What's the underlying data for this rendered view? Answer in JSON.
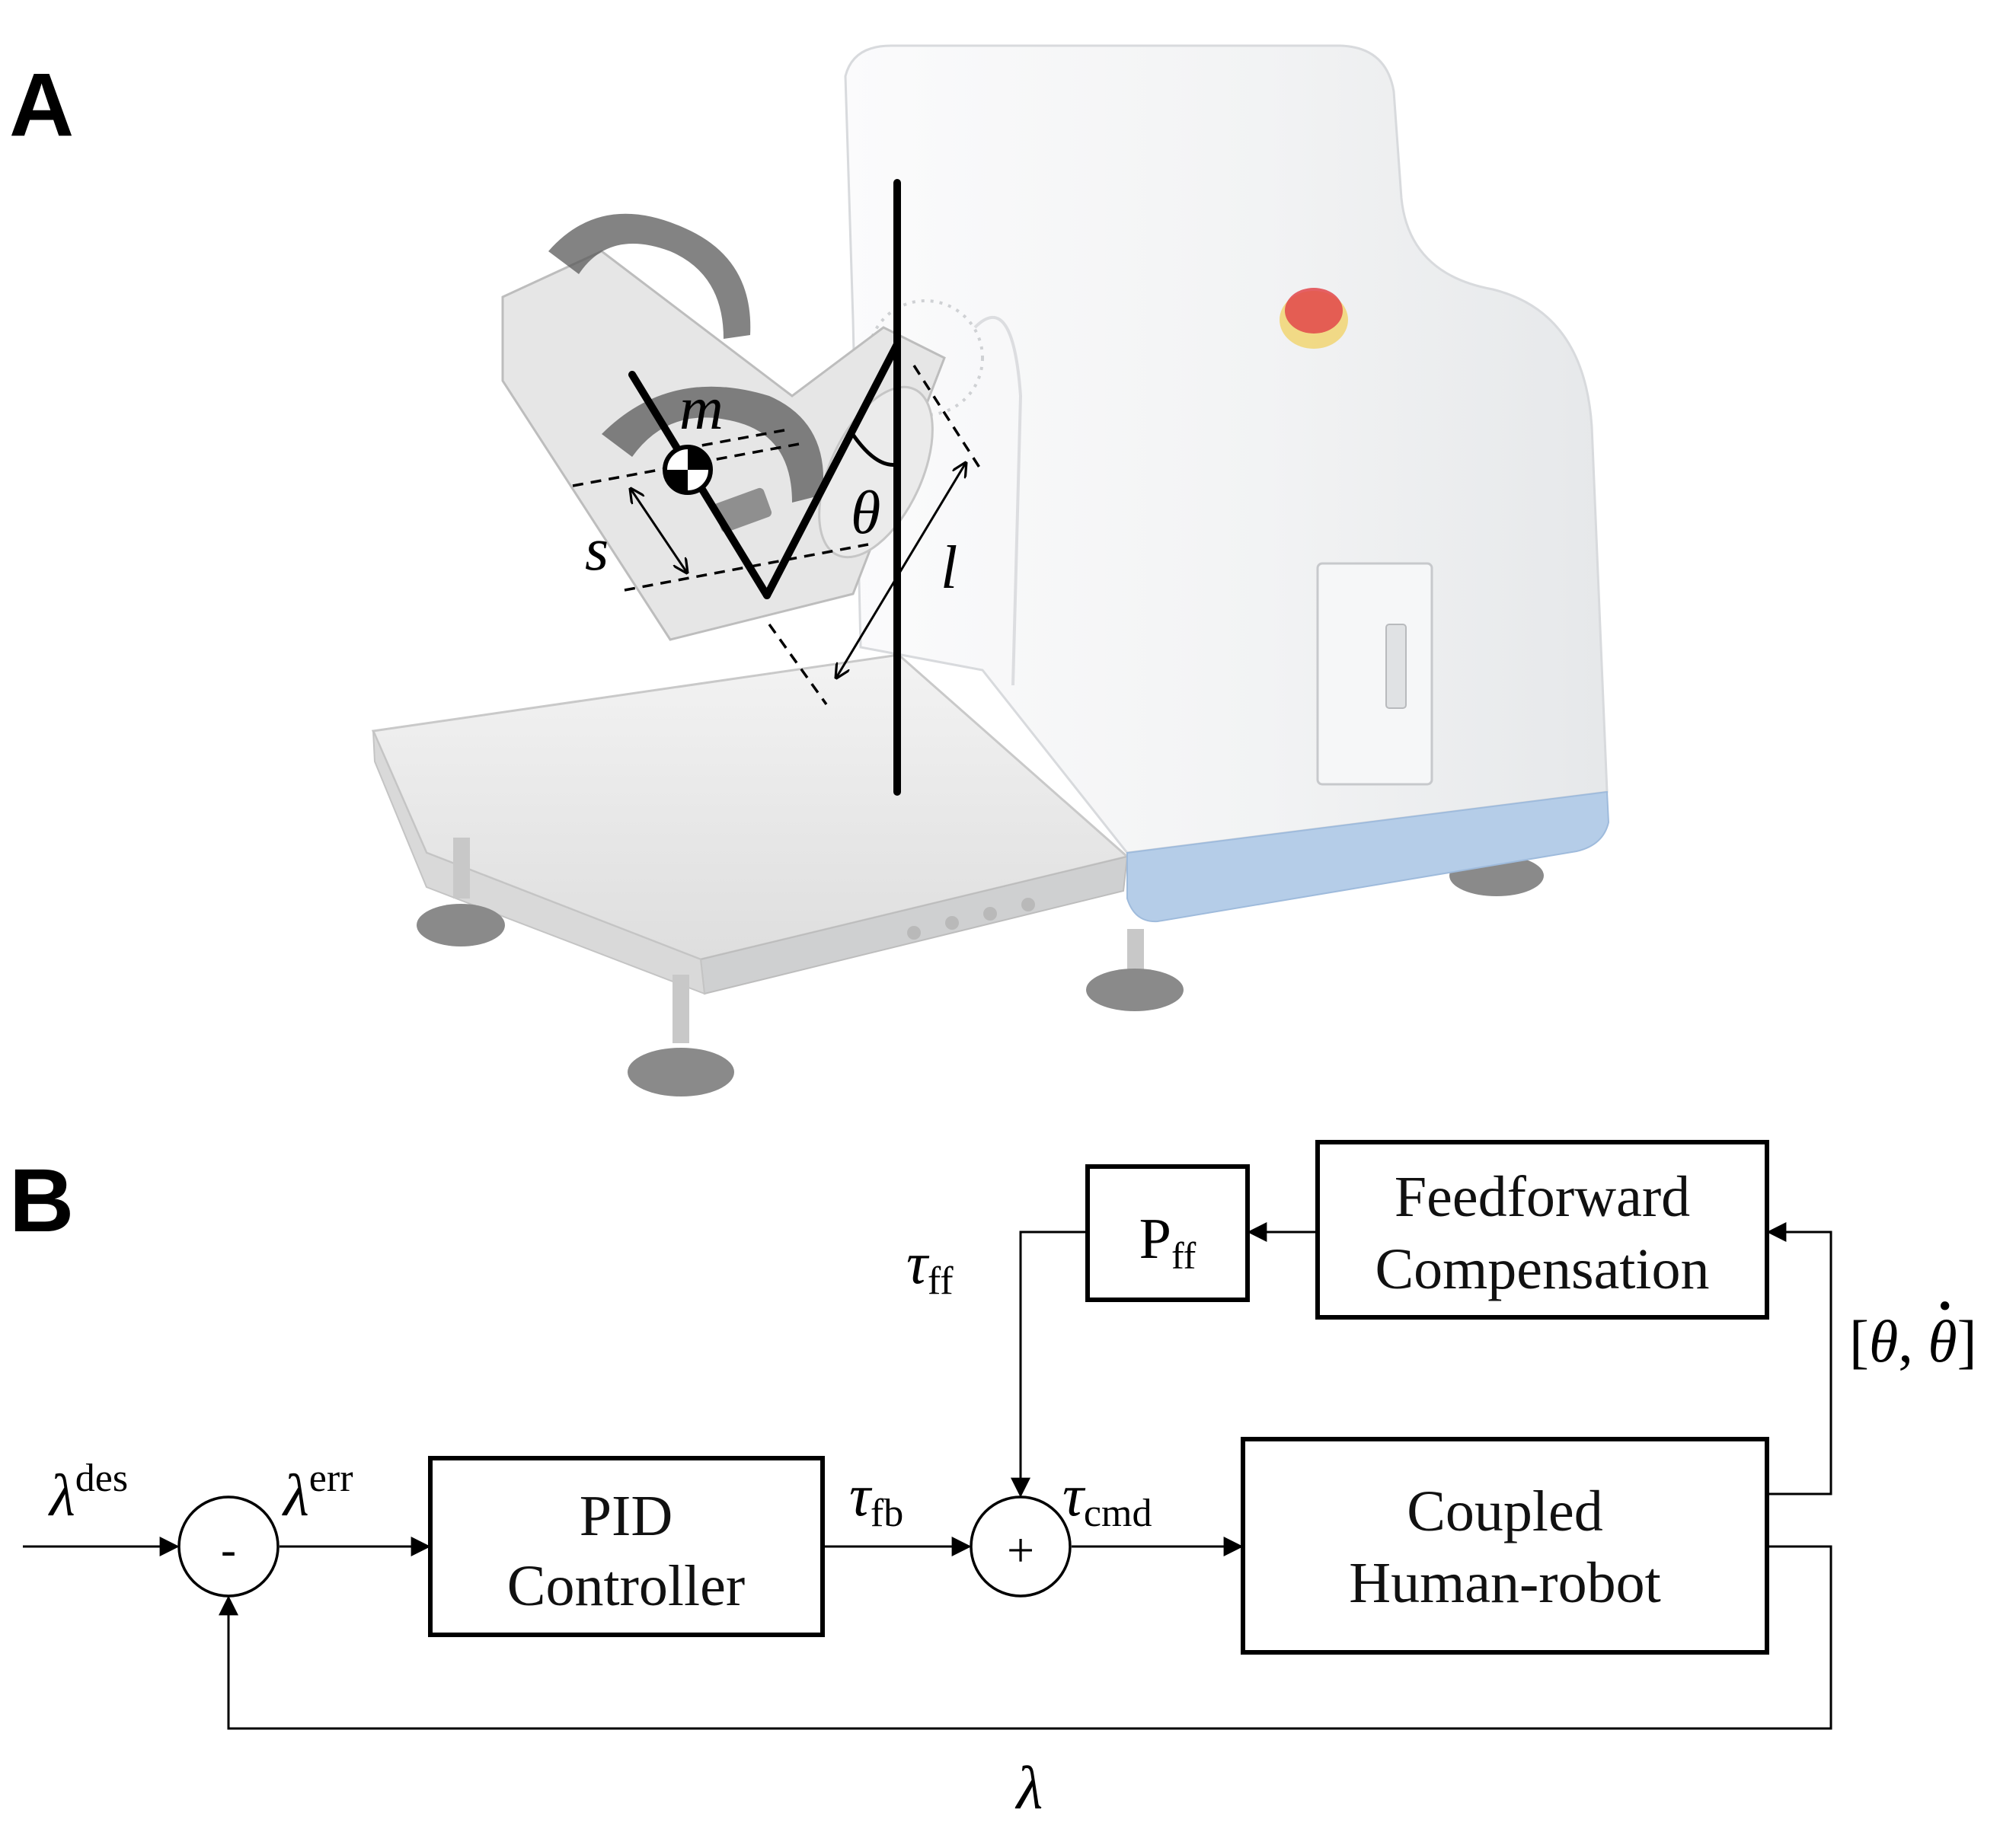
{
  "panels": {
    "a": "A",
    "b": "B"
  },
  "panel_a": {
    "labels": {
      "mass": "m",
      "angle": "θ",
      "offset": "s",
      "length": "l"
    },
    "image_desc": "ankle rehabilitation robot with footplate, straps and leveling feet",
    "colors": {
      "body": "#f4f5f6",
      "base_stripe": "#a9c6e6",
      "estop_red": "#e2474a",
      "estop_yellow": "#f1d36a"
    }
  },
  "panel_b": {
    "blocks": {
      "pid": {
        "line1": "PID",
        "line2": "Controller"
      },
      "plant": {
        "line1": "Coupled",
        "line2": "Human-robot"
      },
      "ff": {
        "line1": "Feedforward",
        "line2": "Compensation"
      },
      "pff": {
        "main": "P",
        "sub": "ff"
      }
    },
    "sum_nodes": {
      "error": "-",
      "command": "+"
    },
    "signals": {
      "lambda_des": {
        "main": "λ",
        "sup": "des"
      },
      "lambda_err": {
        "main": "λ",
        "sup": "err"
      },
      "tau_fb": {
        "main": "τ",
        "sub": "fb"
      },
      "tau_cmd": {
        "main": "τ",
        "sub": "cmd"
      },
      "tau_ff": {
        "main": "τ",
        "sub": "ff"
      },
      "state": {
        "open": "[",
        "theta": "θ",
        "sep": ", ",
        "theta_dot": "θ",
        "dot": "·",
        "close": "]"
      },
      "lambda": "λ"
    }
  }
}
